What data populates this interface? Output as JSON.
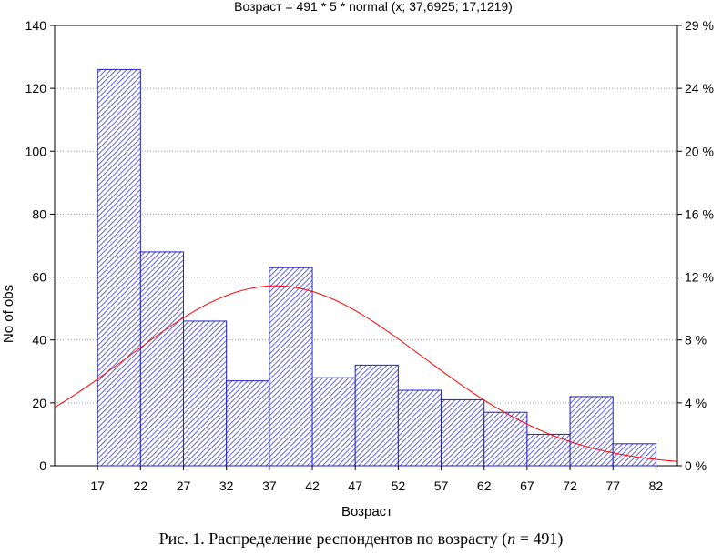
{
  "chart_data": {
    "type": "bar",
    "title": "Возраст = 491 * 5 * normal (x; 37,6925; 17,1219)",
    "xlabel": "Возраст",
    "ylabel": "No of obs",
    "bin_edges": [
      17,
      22,
      27,
      32,
      37,
      42,
      47,
      52,
      57,
      62,
      67,
      72,
      77,
      82
    ],
    "values": [
      126,
      68,
      46,
      27,
      63,
      28,
      32,
      24,
      21,
      17,
      10,
      22,
      7
    ],
    "x_ticks": [
      "17",
      "22",
      "27",
      "32",
      "37",
      "42",
      "47",
      "52",
      "57",
      "62",
      "67",
      "72",
      "77",
      "82"
    ],
    "ylim": [
      0,
      140
    ],
    "y_ticks": [
      "0",
      "20",
      "40",
      "60",
      "80",
      "100",
      "120",
      "140"
    ],
    "y2_ticks": [
      "0 %",
      "4 %",
      "8 %",
      "12 %",
      "16 %",
      "20 %",
      "24 %",
      "29 %"
    ],
    "fit_curve": {
      "type": "normal",
      "n": 491,
      "bin_width": 5,
      "mean": 37.6925,
      "sd": 17.1219
    },
    "bar_color": "#2020c0",
    "curve_color": "#ff0000",
    "grid": "horizontal-dotted"
  },
  "caption": {
    "prefix": "Рис. 1. Распределение респондентов по возрасту (",
    "n_symbol": "n",
    "suffix": " = 491)"
  }
}
